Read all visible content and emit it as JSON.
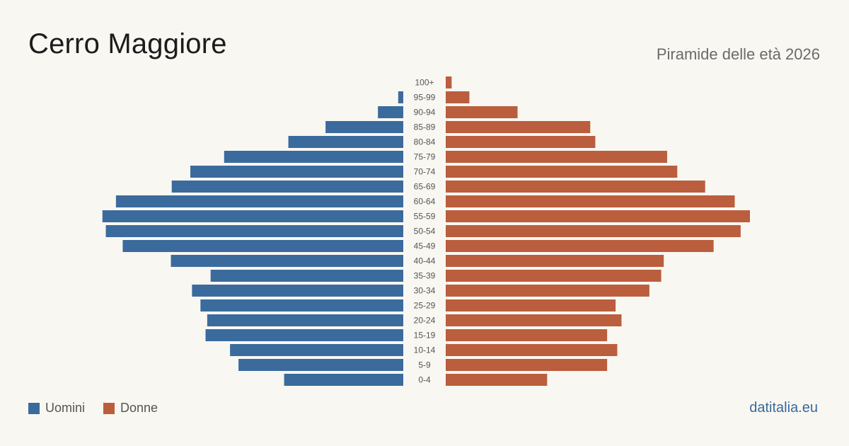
{
  "header": {
    "title": "Cerro Maggiore",
    "subtitle": "Piramide delle età 2026"
  },
  "legend": {
    "men_label": "Uomini",
    "women_label": "Donne"
  },
  "footer": {
    "source": "datitalia.eu"
  },
  "colors": {
    "men": "#3b6b9d",
    "women": "#bb5e3d"
  },
  "chart_data": {
    "type": "bar",
    "orientation": "horizontal-pyramid",
    "categories": [
      "100+",
      "95-99",
      "90-94",
      "85-89",
      "80-84",
      "75-79",
      "70-74",
      "65-69",
      "60-64",
      "55-59",
      "50-54",
      "45-49",
      "40-44",
      "35-39",
      "30-34",
      "25-29",
      "20-24",
      "15-19",
      "10-14",
      "5-9",
      "0-4"
    ],
    "series": [
      {
        "name": "Uomini",
        "values": [
          0,
          6,
          30,
          92,
          136,
          212,
          252,
          274,
          340,
          356,
          352,
          332,
          275,
          228,
          250,
          240,
          232,
          234,
          205,
          195,
          141
        ]
      },
      {
        "name": "Donne",
        "values": [
          7,
          28,
          85,
          171,
          177,
          262,
          274,
          307,
          342,
          360,
          349,
          317,
          258,
          255,
          241,
          201,
          208,
          191,
          203,
          191,
          120
        ]
      }
    ],
    "grid": false,
    "legend_position": "bottom-left"
  }
}
